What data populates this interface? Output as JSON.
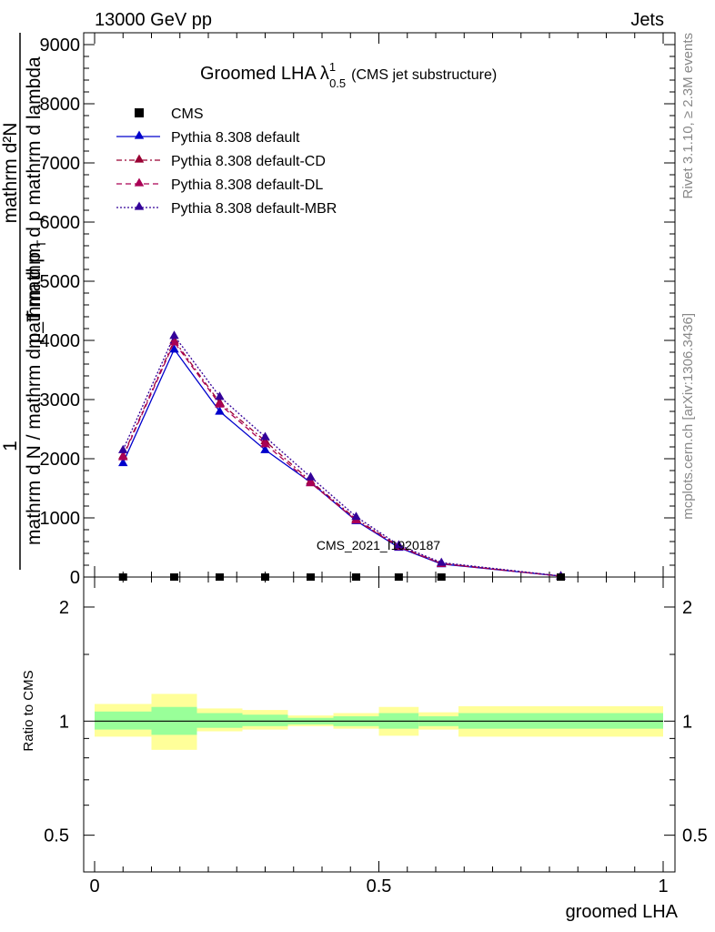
{
  "header": {
    "left": "13000 GeV pp",
    "right": "Jets"
  },
  "side_labels": {
    "rivet": "Rivet 3.1.10, ≥ 2.3M events",
    "mcplots": "mcplots.cern.ch [arXiv:1306.3436]"
  },
  "chart_data": [
    {
      "type": "line",
      "title_main": "Groomed LHA",
      "title_symbol": "λ",
      "title_sup": "1",
      "title_sub": "0.5",
      "title_note": "(CMS jet substructure)",
      "ylabel_numerator": "mathrm d²N",
      "ylabel_fraction_one": "1",
      "ylabel_denominator": "mathrm d N / mathrm d p_T",
      "ylabel_lower_text": "mathrm d p",
      "ylabel_lower_sub": "T",
      "ylabel_upper_text": "mathrm d p mathrm d lambda",
      "watermark": "CMS_2021_I1920187",
      "xlim": [
        0,
        1
      ],
      "ylim": [
        0,
        9200
      ],
      "yticks": [
        0,
        1000,
        2000,
        3000,
        4000,
        5000,
        6000,
        7000,
        8000,
        9000
      ],
      "ytick_labels": [
        "0",
        "1000",
        "2000",
        "3000",
        "4000",
        "5000",
        "6000",
        "7000",
        "8000",
        "9000"
      ],
      "legend": [
        {
          "label": "CMS",
          "color": "#000000",
          "style": "marker"
        },
        {
          "label": "Pythia 8.308 default",
          "color": "#0000cc",
          "style": "solid"
        },
        {
          "label": "Pythia 8.308 default-CD",
          "color": "#990033",
          "style": "dashdot"
        },
        {
          "label": "Pythia 8.308 default-DL",
          "color": "#aa0055",
          "style": "dashed"
        },
        {
          "label": "Pythia 8.308 default-MBR",
          "color": "#330099",
          "style": "dotted"
        }
      ],
      "cms_points": {
        "x": [
          0.05,
          0.14,
          0.22,
          0.3,
          0.38,
          0.46,
          0.535,
          0.61,
          0.82
        ],
        "y": [
          0,
          0,
          0,
          0,
          0,
          0,
          0,
          0,
          0
        ]
      },
      "x": [
        0.05,
        0.14,
        0.22,
        0.3,
        0.38,
        0.46,
        0.535,
        0.61,
        0.82
      ],
      "series": [
        {
          "name": "Pythia 8.308 default",
          "color": "#0000cc",
          "dash": "",
          "values": [
            1930,
            3850,
            2800,
            2150,
            1600,
            950,
            500,
            220,
            15
          ]
        },
        {
          "name": "Pythia 8.308 default-CD",
          "color": "#990033",
          "dash": "6,3,2,3",
          "values": [
            2050,
            4000,
            2950,
            2300,
            1620,
            980,
            520,
            230,
            16
          ]
        },
        {
          "name": "Pythia 8.308 default-DL",
          "color": "#aa0055",
          "dash": "6,4",
          "values": [
            2030,
            3970,
            2920,
            2250,
            1590,
            960,
            510,
            225,
            15
          ]
        },
        {
          "name": "Pythia 8.308 default-MBR",
          "color": "#330099",
          "dash": "2,2",
          "values": [
            2150,
            4080,
            3050,
            2370,
            1690,
            1020,
            540,
            245,
            17
          ]
        }
      ]
    },
    {
      "type": "area",
      "ylabel": "Ratio to CMS",
      "xlabel": "groomed LHA",
      "xlim": [
        0,
        1
      ],
      "xticks": [
        0,
        0.5,
        1
      ],
      "xtick_labels": [
        "0",
        "0.5",
        "1"
      ],
      "ylim": [
        0.4,
        2.4
      ],
      "yscale": "log",
      "yticks": [
        0.5,
        1,
        2
      ],
      "ytick_labels": [
        "0.5",
        "1",
        "2"
      ],
      "bins": [
        {
          "x0": 0.0,
          "x1": 0.1,
          "stat_lo": 0.95,
          "stat_hi": 1.06,
          "tot_lo": 0.91,
          "tot_hi": 1.11
        },
        {
          "x0": 0.1,
          "x1": 0.18,
          "stat_lo": 0.92,
          "stat_hi": 1.09,
          "tot_lo": 0.84,
          "tot_hi": 1.18
        },
        {
          "x0": 0.18,
          "x1": 0.26,
          "stat_lo": 0.96,
          "stat_hi": 1.05,
          "tot_lo": 0.94,
          "tot_hi": 1.08
        },
        {
          "x0": 0.26,
          "x1": 0.34,
          "stat_lo": 0.97,
          "stat_hi": 1.04,
          "tot_lo": 0.95,
          "tot_hi": 1.07
        },
        {
          "x0": 0.34,
          "x1": 0.42,
          "stat_lo": 0.98,
          "stat_hi": 1.02,
          "tot_lo": 0.97,
          "tot_hi": 1.035
        },
        {
          "x0": 0.42,
          "x1": 0.5,
          "stat_lo": 0.97,
          "stat_hi": 1.03,
          "tot_lo": 0.955,
          "tot_hi": 1.05
        },
        {
          "x0": 0.5,
          "x1": 0.57,
          "stat_lo": 0.955,
          "stat_hi": 1.05,
          "tot_lo": 0.915,
          "tot_hi": 1.09
        },
        {
          "x0": 0.57,
          "x1": 0.64,
          "stat_lo": 0.97,
          "stat_hi": 1.03,
          "tot_lo": 0.95,
          "tot_hi": 1.055
        },
        {
          "x0": 0.64,
          "x1": 1.0,
          "stat_lo": 0.955,
          "stat_hi": 1.05,
          "tot_lo": 0.91,
          "tot_hi": 1.095
        }
      ],
      "stat_color": "#99ff99",
      "total_color": "#ffff99",
      "reference_value": 1
    }
  ]
}
